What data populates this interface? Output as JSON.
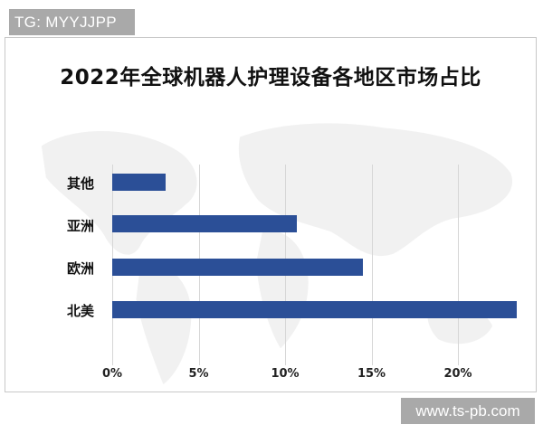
{
  "watermarks": {
    "top_left": "TG: MYYJJPP",
    "bottom_right": "www.ts-pb.com"
  },
  "colors": {
    "bar": "#2b4f97",
    "gridline": "#d6d6d6",
    "watermark_bg": "#a9a9a9"
  },
  "chart_data": {
    "type": "bar",
    "orientation": "horizontal",
    "title": "2022年全球机器人护理设备各地区市场占比",
    "categories": [
      "其他",
      "亚洲",
      "欧洲",
      "北美"
    ],
    "values": [
      3.1,
      10.7,
      14.5,
      23.4
    ],
    "unit": "%",
    "xlabel": "",
    "ylabel": "",
    "xlim": [
      0,
      24
    ],
    "x_ticks": [
      "0%",
      "5%",
      "10%",
      "15%",
      "20%"
    ],
    "x_tick_values": [
      0,
      5,
      10,
      15,
      20
    ],
    "grid": "vertical",
    "legend": "none",
    "background": "faint world map"
  }
}
